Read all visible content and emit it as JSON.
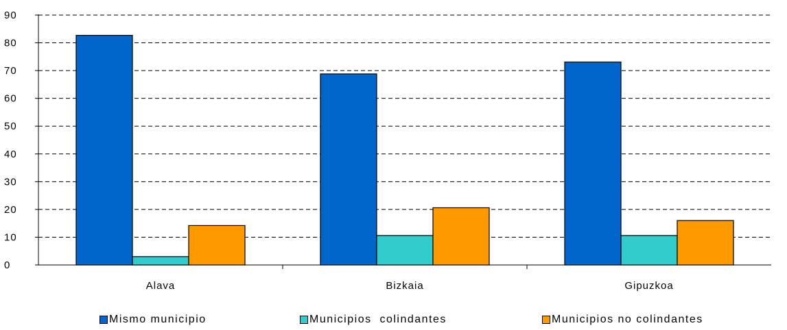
{
  "chart_data": {
    "type": "bar",
    "categories": [
      "Alava",
      "Bizkaia",
      "Gipuzkoa"
    ],
    "series": [
      {
        "name": "Mismo municipio",
        "values": [
          82.7,
          68.8,
          73.1
        ],
        "color": "#0066CC"
      },
      {
        "name": "Municipios  colindantes",
        "values": [
          3.0,
          10.6,
          10.6
        ],
        "color": "#33CCCC"
      },
      {
        "name": "Municipios no colindantes",
        "values": [
          14.2,
          20.6,
          16.0
        ],
        "color": "#FF9900"
      }
    ],
    "ylim": [
      0,
      90
    ],
    "yticks": [
      "0",
      "10",
      "20",
      "30",
      "40",
      "50",
      "60",
      "70",
      "80",
      "90"
    ],
    "grid": true,
    "grid_style": "dashed",
    "legend_position": "bottom",
    "title": "",
    "xlabel": "",
    "ylabel": ""
  }
}
